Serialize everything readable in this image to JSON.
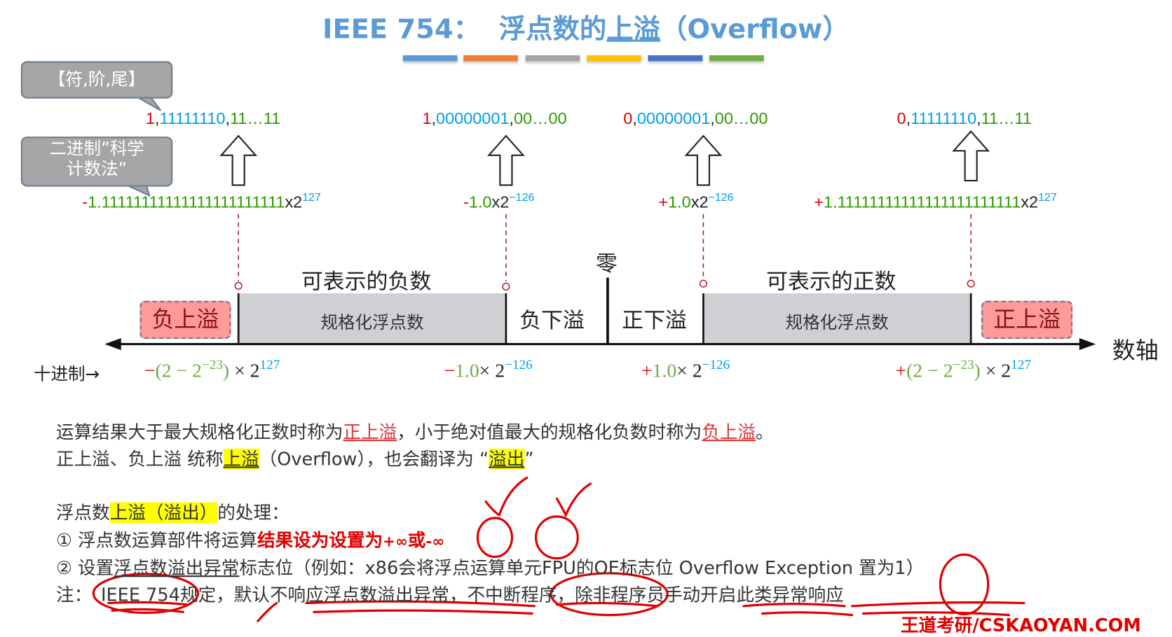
{
  "title": {
    "prefix": "IEEE 754：",
    "part1": "浮点数的",
    "underlined": "上溢",
    "suffix": "（Overflow）"
  },
  "color_bars": [
    "#5b9bd5",
    "#ed7d31",
    "#a5a5a5",
    "#ffc000",
    "#4472c4",
    "#70ad47"
  ],
  "callouts": {
    "format": "【符,阶,尾】",
    "sci_line1": "二进制”科学",
    "sci_line2": "计数法”"
  },
  "binary": [
    {
      "sign": "1",
      "exp": "11111110",
      "mant": "11…11"
    },
    {
      "sign": "1",
      "exp": "00000001",
      "mant": "00…00"
    },
    {
      "sign": "0",
      "exp": "00000001",
      "mant": "00…00"
    },
    {
      "sign": "0",
      "exp": "11111110",
      "mant": "11…11"
    }
  ],
  "scientific": [
    {
      "sign": "-",
      "mant": "1.11111111111111111111111",
      "times": "x2",
      "exp": "127"
    },
    {
      "sign": "-",
      "mant": "1.0",
      "times": "x2",
      "exp": "−126"
    },
    {
      "sign": "+",
      "mant": "1.0",
      "times": "x2",
      "exp": "−126"
    },
    {
      "sign": "+",
      "mant": "1.11111111111111111111111",
      "times": "x2",
      "exp": "127"
    }
  ],
  "axis": {
    "neg_representable": "可表示的负数",
    "pos_representable": "可表示的正数",
    "zero": "零",
    "normalized": "规格化浮点数",
    "neg_underflow": "负下溢",
    "pos_underflow": "正下溢",
    "neg_overflow": "负上溢",
    "pos_overflow": "正上溢",
    "axis_label": "数轴"
  },
  "decimal": {
    "label": "十进制→",
    "values": [
      {
        "sign": "−",
        "body": "(2 − 2",
        "inner_exp": "−23",
        "close": ")",
        "times": " × 2",
        "exp": "127"
      },
      {
        "sign": "−",
        "body": "1.0",
        "times": "× 2",
        "exp": "−126"
      },
      {
        "sign": "+",
        "body": "1.0",
        "times": "× 2",
        "exp": "−126"
      },
      {
        "sign": "+",
        "body": "(2 − 2",
        "inner_exp": "−23",
        "close": ")",
        "times": " × 2",
        "exp": "127"
      }
    ]
  },
  "text": {
    "l1a": "运算结果大于最大规格化正数时称为",
    "l1b": "正上溢",
    "l1c": "，小于绝对值最大的规格化负数时称为",
    "l1d": "负上溢",
    "l1e": "。",
    "l2a": "正上溢、负上溢 统称",
    "l2b": "上溢",
    "l2c": "（Overflow），也会翻译为 “",
    "l2d": "溢出",
    "l2e": "”",
    "l3a": "浮点数",
    "l3b": "上溢（溢出）",
    "l3c": "的处理：",
    "l4a": "① 浮点数运算部件将运算",
    "l4b": "结果设为设置为",
    "l4c": "+∞",
    "l4d": "或",
    "l4e": "-∞",
    "l5a": "② 设置",
    "l5b": "浮点数溢出异常",
    "l5c": "标志位（例如：x86会将浮点运算单元FPU的OE标志位 Overflow Exception 置为1）",
    "l6a": "注：",
    "l6b": "IEEE 754",
    "l6c": "规定，默认不响应浮点数溢出异常，不中断程序，除非程序员手动开启此类异常响应"
  },
  "watermark": "王道考研/CSKAOYAN.COM"
}
